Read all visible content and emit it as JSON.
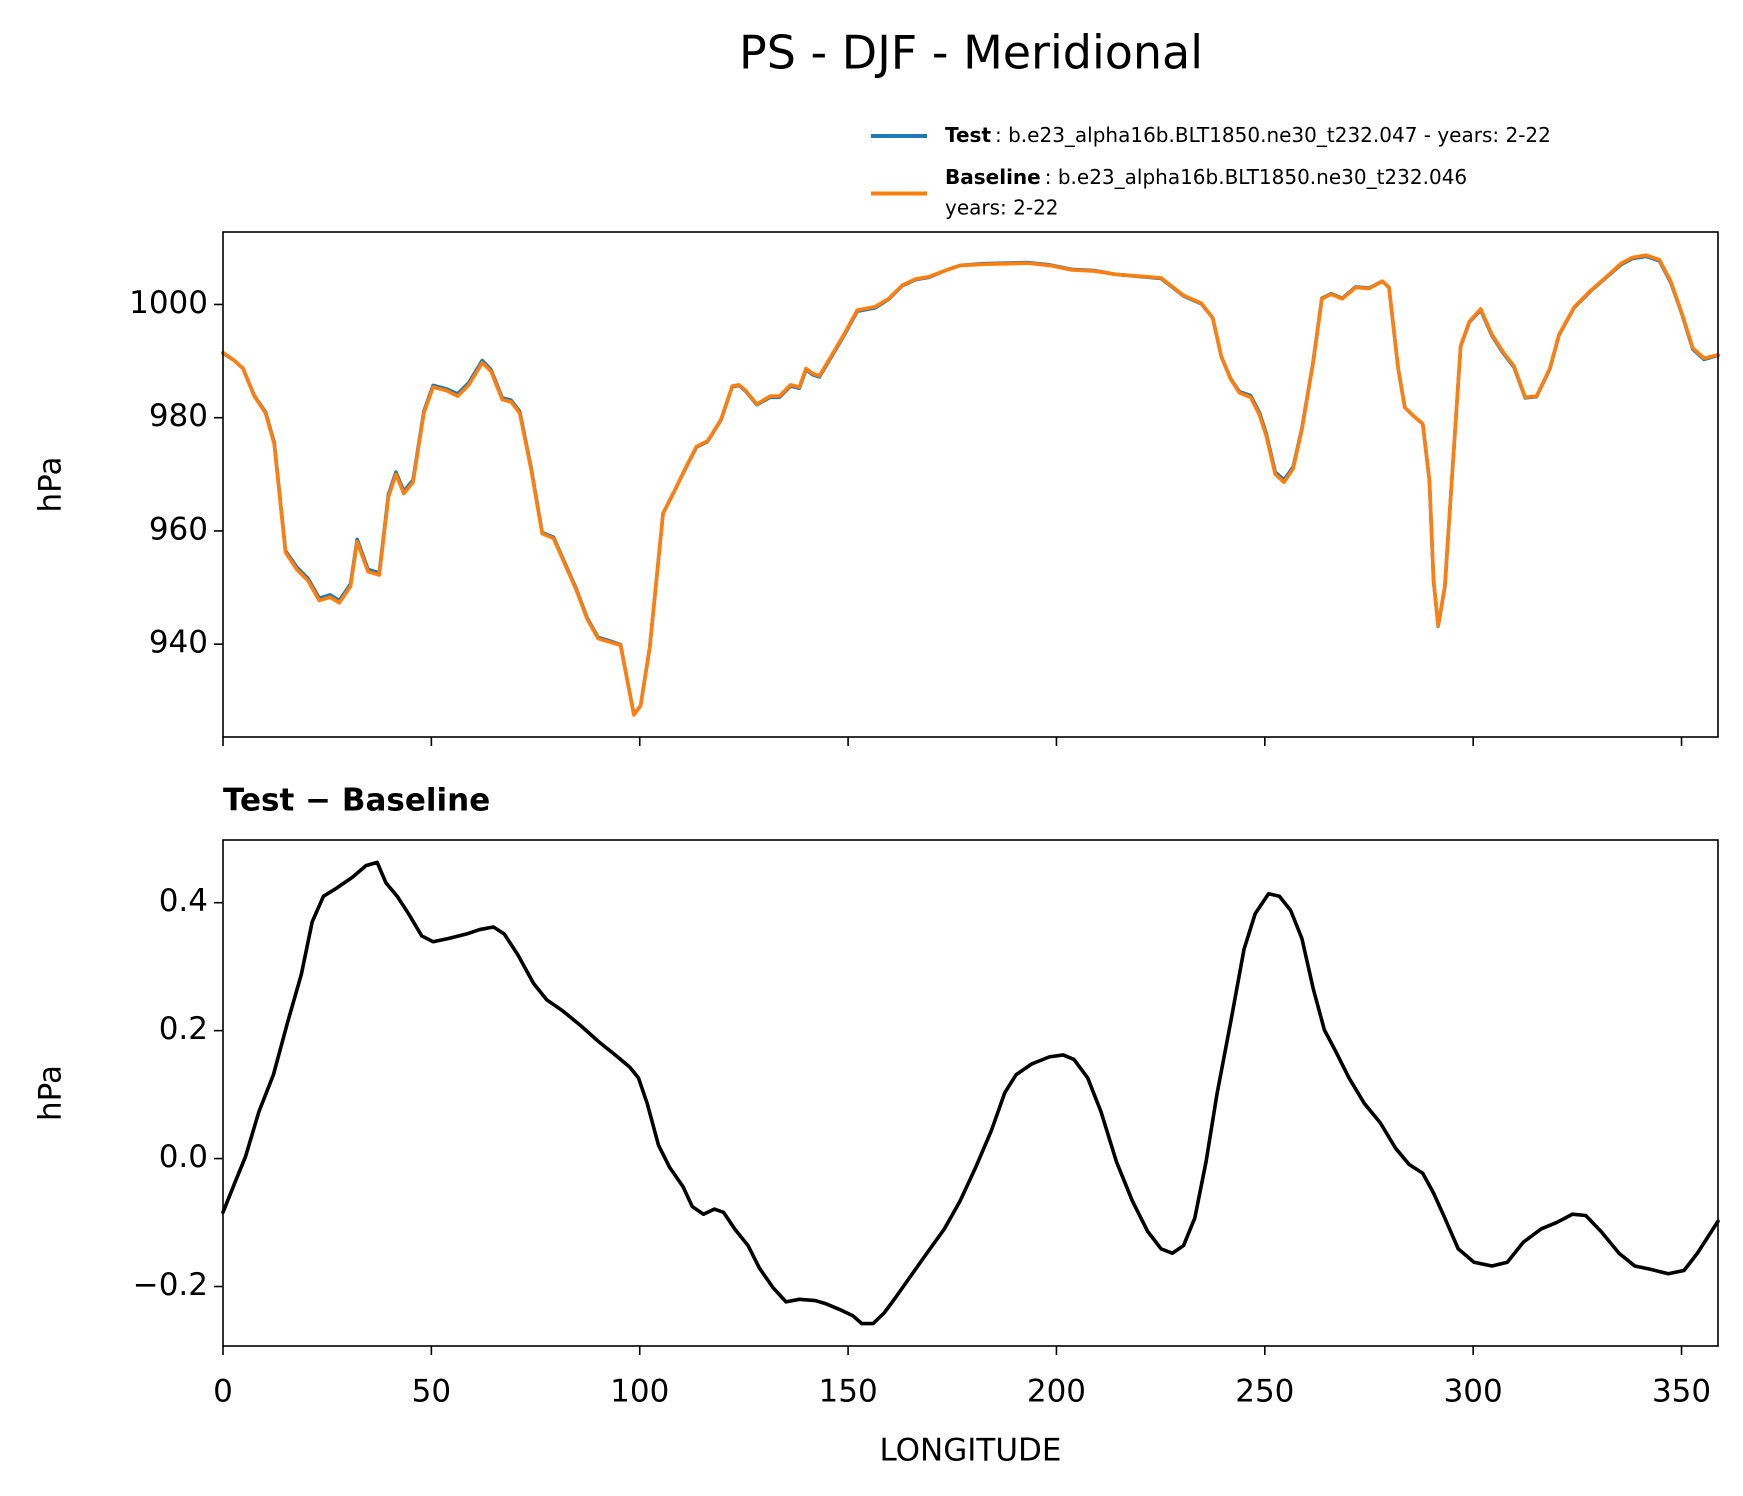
{
  "title": "PS - DJF - Meridional",
  "chart_data": [
    {
      "type": "line",
      "ylabel": "hPa",
      "legend": "upper right",
      "xtick_labels": false,
      "xlim": [
        0,
        358.75
      ],
      "xticks": [
        0,
        50,
        100,
        150,
        200,
        250,
        300,
        350
      ],
      "ylim": [
        923.6,
        1012.8
      ],
      "yticks": [
        940,
        960,
        980,
        1000
      ],
      "x": [
        0,
        2.7,
        4.8,
        7.5,
        10.2,
        12.3,
        15.0,
        17.7,
        20.4,
        23.1,
        25.7,
        27.9,
        30.6,
        32.2,
        34.8,
        37.5,
        39.7,
        41.5,
        43.4,
        45.6,
        48.2,
        50.4,
        53.6,
        56.3,
        59.0,
        62.2,
        64.3,
        67.0,
        69.1,
        71.2,
        73.9,
        76.6,
        79.3,
        82.0,
        84.7,
        87.4,
        90.0,
        92.7,
        95.4,
        97.3,
        98.6,
        100.2,
        102.4,
        105.6,
        108.3,
        110.9,
        113.6,
        116.3,
        119.5,
        122.2,
        123.8,
        125.4,
        128.1,
        131.3,
        133.5,
        136.2,
        138.3,
        139.9,
        141.5,
        143.1,
        145.8,
        149.0,
        152.2,
        156.5,
        159.7,
        163.0,
        166.2,
        169.4,
        173.7,
        176.9,
        182.3,
        193.0,
        198.3,
        203.7,
        209.1,
        214.4,
        225.1,
        230.5,
        234.8,
        237.5,
        239.6,
        241.8,
        243.9,
        246.6,
        248.7,
        250.3,
        252.5,
        254.6,
        256.8,
        258.9,
        261.6,
        263.7,
        265.9,
        268.6,
        271.8,
        275.0,
        278.2,
        279.8,
        282.0,
        283.6,
        285.7,
        287.9,
        289.5,
        290.5,
        291.6,
        293.2,
        295.4,
        297.0,
        299.1,
        301.8,
        304.5,
        307.1,
        309.8,
        312.5,
        315.2,
        318.4,
        320.6,
        324.3,
        328.1,
        332.3,
        335.6,
        338.2,
        341.5,
        344.7,
        347.4,
        350.0,
        352.7,
        355.4,
        358.75
      ],
      "series": [
        {
          "name": "Test",
          "description": [
            ": b.e23_alpha16b.BLT1850.ne30_t232.047 - years: 2-22"
          ],
          "color": "#1f77b4",
          "values": [
            991.4,
            990.1,
            988.7,
            983.9,
            981.0,
            975.6,
            956.5,
            953.6,
            951.6,
            948.1,
            948.7,
            947.7,
            950.6,
            958.5,
            953.2,
            952.6,
            966.4,
            970.4,
            967.0,
            969.0,
            981.1,
            985.7,
            985.1,
            984.2,
            986.2,
            990.1,
            988.5,
            983.5,
            983.1,
            981.1,
            971.3,
            959.7,
            958.9,
            954.4,
            949.9,
            944.6,
            941.2,
            940.6,
            939.9,
            932.6,
            927.6,
            929.1,
            939.4,
            963.1,
            967.0,
            970.9,
            974.8,
            975.8,
            979.6,
            985.5,
            985.7,
            984.7,
            982.3,
            983.6,
            983.6,
            985.6,
            985.2,
            988.5,
            987.6,
            987.2,
            990.5,
            994.5,
            998.8,
            999.4,
            1000.9,
            1003.3,
            1004.4,
            1004.8,
            1006.1,
            1006.9,
            1007.2,
            1007.4,
            1007.0,
            1006.2,
            1006.0,
            1005.3,
            1004.6,
            1001.5,
            1000.1,
            997.6,
            990.7,
            986.9,
            984.6,
            983.9,
            980.9,
            977.3,
            970.4,
            969.0,
            971.3,
            978.1,
            989.9,
            1001.1,
            1001.9,
            1001.1,
            1003.1,
            1002.9,
            1004.1,
            1003.0,
            988.7,
            981.8,
            980.3,
            978.9,
            968.9,
            951.1,
            943.2,
            950.1,
            974.8,
            992.6,
            996.9,
            999.0,
            994.5,
            991.5,
            988.9,
            983.5,
            983.7,
            988.6,
            994.6,
            999.5,
            1002.3,
            1005.0,
            1007.1,
            1008.1,
            1008.5,
            1007.7,
            1003.9,
            998.5,
            992.1,
            990.3,
            991.0
          ]
        },
        {
          "name": "Baseline",
          "description": [
            ": b.e23_alpha16b.BLT1850.ne30_t232.046",
            "years: 2-22"
          ],
          "color": "#ff7f0e",
          "values": [
            991.5,
            990.1,
            988.7,
            983.8,
            980.8,
            975.3,
            956.2,
            953.2,
            951.2,
            947.7,
            948.3,
            947.3,
            950.2,
            958.1,
            952.8,
            952.2,
            966.0,
            970.0,
            966.6,
            968.6,
            980.8,
            985.4,
            984.8,
            983.8,
            985.8,
            989.7,
            988.2,
            983.2,
            982.8,
            980.8,
            971.0,
            959.5,
            958.7,
            954.2,
            949.7,
            944.4,
            941.0,
            940.4,
            939.8,
            932.5,
            927.5,
            929.1,
            939.4,
            963.1,
            967.0,
            971.0,
            974.9,
            975.9,
            979.7,
            985.6,
            985.8,
            984.8,
            982.4,
            983.8,
            983.8,
            985.8,
            985.4,
            988.7,
            987.8,
            987.4,
            990.7,
            994.7,
            999.0,
            999.6,
            1001.0,
            1003.4,
            1004.5,
            1004.9,
            1006.1,
            1006.9,
            1007.1,
            1007.3,
            1006.9,
            1006.1,
            1005.9,
            1005.3,
            1004.7,
            1001.6,
            1000.2,
            997.6,
            990.7,
            986.8,
            984.4,
            983.6,
            980.5,
            976.9,
            970.0,
            968.6,
            971.0,
            977.9,
            989.7,
            1001.0,
            1001.8,
            1001.0,
            1003.0,
            1002.8,
            1004.1,
            1003.0,
            988.7,
            981.8,
            980.3,
            978.9,
            969.0,
            951.2,
            943.3,
            950.2,
            974.9,
            992.7,
            997.0,
            999.2,
            994.7,
            991.7,
            989.1,
            983.6,
            983.8,
            988.7,
            994.7,
            999.6,
            1002.4,
            1005.1,
            1007.3,
            1008.3,
            1008.7,
            1007.9,
            1004.1,
            998.6,
            992.3,
            990.5,
            991.1
          ]
        }
      ]
    },
    {
      "type": "line",
      "title": "Test − Baseline",
      "ylabel": "hPa",
      "xlabel": "LONGITUDE",
      "xtick_labels": true,
      "color": "#000000",
      "xlim": [
        0,
        358.75
      ],
      "xticks": [
        0,
        50,
        100,
        150,
        200,
        250,
        300,
        350
      ],
      "ylim": [
        -0.293,
        0.498
      ],
      "yticks": [
        {
          "value": -0.2,
          "label": "−0.2"
        },
        {
          "value": 0.0,
          "label": "0.0"
        },
        {
          "value": 0.2,
          "label": "0.2"
        },
        {
          "value": 0.4,
          "label": "0.4"
        }
      ],
      "x": [
        0,
        2.7,
        5.4,
        8.6,
        12.1,
        15.5,
        18.8,
        21.4,
        24.1,
        27.3,
        31.1,
        34.3,
        37.0,
        39.1,
        41.8,
        44.5,
        47.7,
        50.4,
        54.1,
        58.4,
        61.6,
        64.9,
        67.5,
        70.8,
        74.5,
        77.7,
        81.5,
        85.8,
        90.1,
        94.3,
        97.6,
        99.7,
        101.8,
        104.5,
        107.2,
        110.4,
        112.6,
        115.3,
        117.9,
        120.1,
        122.8,
        126.0,
        128.7,
        131.9,
        135.1,
        138.3,
        142.1,
        144.7,
        148.0,
        151.2,
        153.3,
        156.0,
        158.7,
        161.3,
        165.1,
        168.9,
        173.1,
        176.9,
        180.6,
        184.4,
        187.6,
        190.3,
        194.1,
        198.3,
        201.6,
        204.2,
        207.5,
        210.7,
        214.4,
        218.2,
        221.9,
        225.1,
        227.8,
        230.5,
        233.2,
        235.9,
        238.5,
        241.8,
        245.0,
        247.7,
        250.9,
        253.5,
        256.2,
        258.9,
        261.6,
        264.3,
        266.9,
        270.2,
        273.9,
        277.7,
        281.4,
        284.6,
        287.9,
        290.5,
        293.2,
        296.4,
        300.2,
        304.5,
        308.2,
        312.0,
        316.3,
        320.0,
        323.8,
        327.0,
        330.7,
        335.0,
        338.8,
        342.5,
        346.8,
        350.6,
        353.8,
        358.75
      ],
      "values": [
        -0.084,
        -0.04,
        0.003,
        0.073,
        0.131,
        0.213,
        0.288,
        0.37,
        0.41,
        0.423,
        0.44,
        0.458,
        0.463,
        0.431,
        0.41,
        0.383,
        0.348,
        0.339,
        0.344,
        0.351,
        0.358,
        0.362,
        0.351,
        0.318,
        0.274,
        0.248,
        0.231,
        0.208,
        0.183,
        0.161,
        0.143,
        0.126,
        0.086,
        0.021,
        -0.014,
        -0.044,
        -0.075,
        -0.087,
        -0.079,
        -0.084,
        -0.11,
        -0.136,
        -0.171,
        -0.201,
        -0.224,
        -0.22,
        -0.222,
        -0.227,
        -0.236,
        -0.246,
        -0.258,
        -0.258,
        -0.241,
        -0.218,
        -0.183,
        -0.148,
        -0.11,
        -0.066,
        -0.014,
        0.044,
        0.103,
        0.131,
        0.148,
        0.159,
        0.162,
        0.155,
        0.126,
        0.073,
        -0.005,
        -0.066,
        -0.114,
        -0.141,
        -0.148,
        -0.136,
        -0.093,
        -0.005,
        0.1,
        0.213,
        0.327,
        0.383,
        0.414,
        0.41,
        0.388,
        0.344,
        0.266,
        0.201,
        0.169,
        0.126,
        0.086,
        0.056,
        0.016,
        -0.009,
        -0.023,
        -0.054,
        -0.093,
        -0.141,
        -0.162,
        -0.168,
        -0.162,
        -0.131,
        -0.11,
        -0.1,
        -0.087,
        -0.089,
        -0.114,
        -0.148,
        -0.168,
        -0.173,
        -0.18,
        -0.175,
        -0.148,
        -0.098
      ]
    }
  ]
}
